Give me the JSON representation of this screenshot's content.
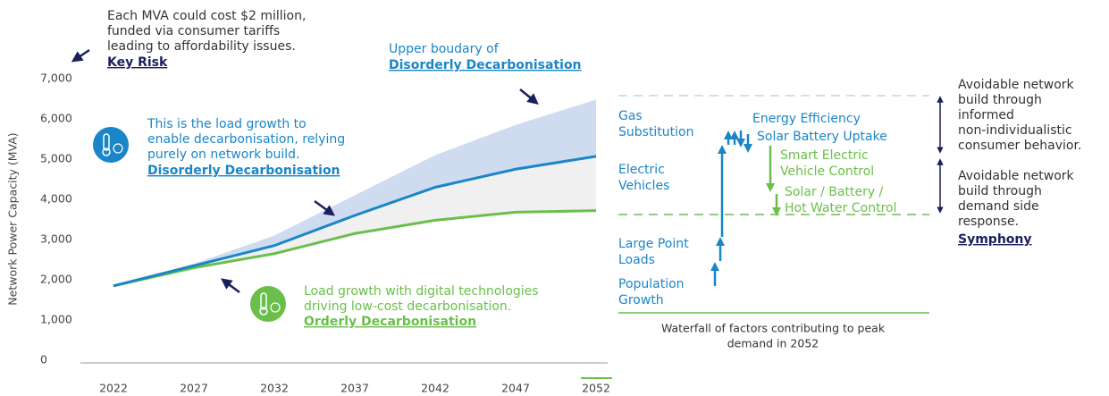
{
  "chart_data": {
    "type": "line",
    "y_label": "Network Power Capacity (MVA)",
    "categories": [
      "2022",
      "2027",
      "2032",
      "2037",
      "2042",
      "2047",
      "2052"
    ],
    "ylim": [
      0,
      7000
    ],
    "yticks": [
      0,
      {
        "value": 1000,
        "label": "1,000"
      },
      {
        "value": 2000,
        "label": "2,000"
      },
      {
        "value": 3000,
        "label": "3,000"
      },
      {
        "value": 4000,
        "label": "4,000"
      },
      {
        "value": 5000,
        "label": "5,000"
      },
      {
        "value": 6000,
        "label": "6,000"
      },
      {
        "value": 7000,
        "label": "7,000"
      }
    ],
    "band_upper": {
      "color": "#cfdcf0",
      "values": [
        1850,
        2400,
        3100,
        4100,
        5100,
        5850,
        6480
      ]
    },
    "series": [
      {
        "name": "Disorderly Decarbonisation",
        "color": "#1a86c7",
        "values": [
          1850,
          2350,
          2850,
          3600,
          4300,
          4750,
          5070
        ]
      },
      {
        "name": "Orderly Decarbonisation",
        "color": "#6abf4b",
        "values": [
          1850,
          2300,
          2650,
          3150,
          3480,
          3680,
          3720
        ]
      }
    ],
    "annotations": {
      "risk": {
        "lines": [
          "Each MVA could cost $2 million,",
          "funded via consumer tariffs",
          "leading to affordability issues."
        ],
        "link": "Key Risk"
      },
      "upper": {
        "lines": [
          "Upper boudary of"
        ]
      },
      "disorderly": {
        "lines": [
          "This is the load growth to",
          "enable decarbonisation, relying",
          "purely on network build."
        ]
      },
      "orderly": {
        "lines": [
          "Load growth with digital technologies",
          "driving low-cost decarbonisation."
        ]
      }
    }
  },
  "waterfall": {
    "caption": [
      "Waterfall of factors contributing to peak",
      "demand in 2052"
    ],
    "blue_labels": [
      [
        "Gas",
        "Substitution"
      ],
      [
        "Electric",
        "Vehicles"
      ],
      [
        "Large Point",
        "Loads"
      ],
      [
        "Population",
        "Growth"
      ],
      [
        "Energy Efficiency"
      ],
      [
        "Solar Battery Uptake"
      ]
    ],
    "green_labels": [
      [
        "Smart Electric",
        "Vehicle Control"
      ],
      [
        "Solar / Battery /",
        "Hot Water Control"
      ]
    ],
    "right_notes": [
      [
        "Avoidable network",
        "build through",
        "informed",
        "non-individualistic",
        "consumer behavior."
      ],
      [
        "Avoidable network",
        "build through",
        "demand side",
        "response."
      ]
    ],
    "right_link": "Symphony"
  }
}
